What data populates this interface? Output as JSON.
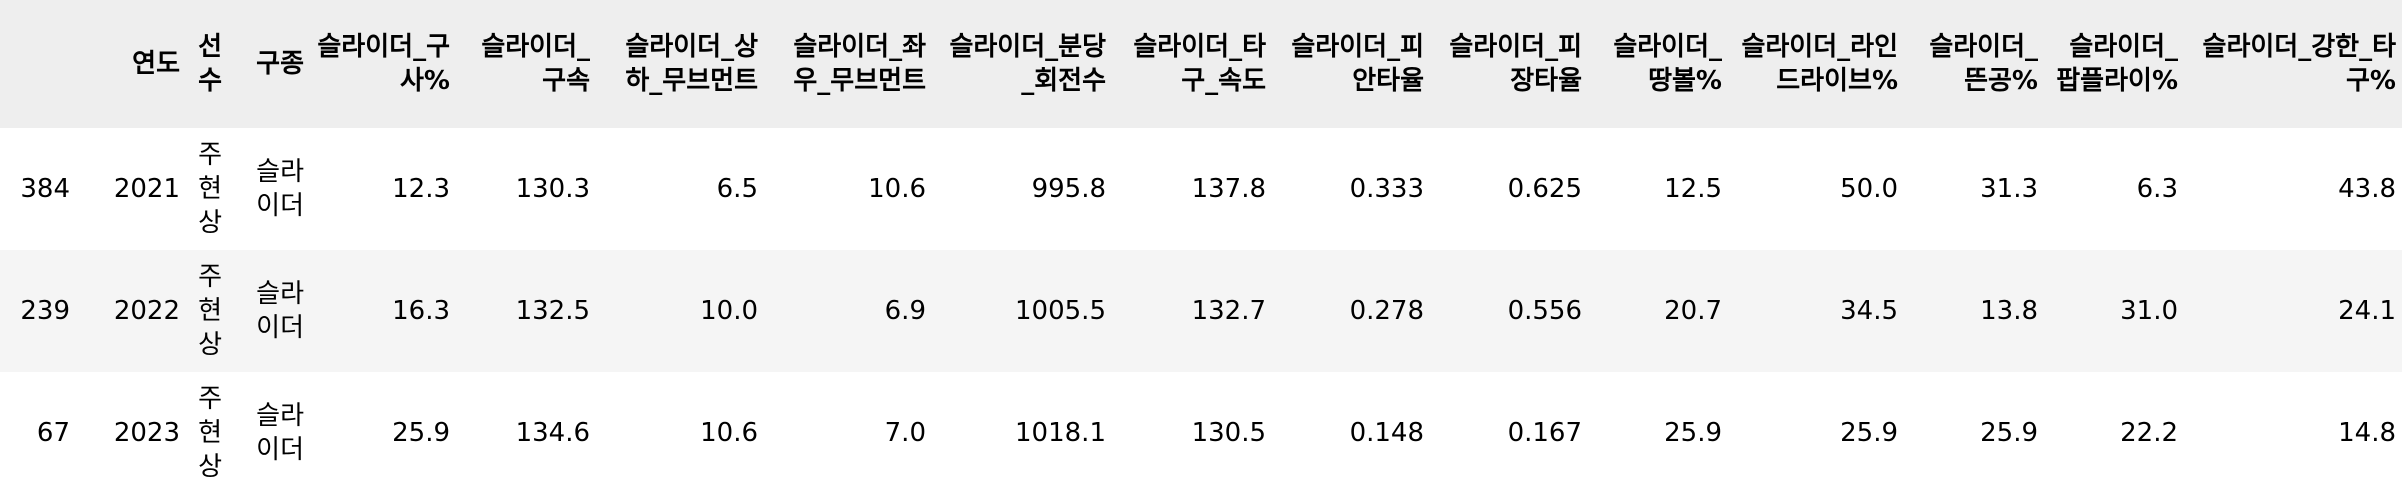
{
  "table": {
    "columns": [
      "",
      "연도",
      "선수",
      "구종",
      "슬라이더_구사%",
      "슬라이더_구속",
      "슬라이더_상하_무브먼트",
      "슬라이더_좌우_무브먼트",
      "슬라이더_분당_회전수",
      "슬라이더_타구_속도",
      "슬라이더_피안타율",
      "슬라이더_피장타율",
      "슬라이더_땅볼%",
      "슬라이더_라인드라이브%",
      "슬라이더_뜬공%",
      "슬라이더_팝플라이%",
      "슬라이더_강한_타구%"
    ],
    "rows": [
      [
        "384",
        "2021",
        "주현상",
        "슬라이더",
        "12.3",
        "130.3",
        "6.5",
        "10.6",
        "995.8",
        "137.8",
        "0.333",
        "0.625",
        "12.5",
        "50.0",
        "31.3",
        "6.3",
        "43.8"
      ],
      [
        "239",
        "2022",
        "주현상",
        "슬라이더",
        "16.3",
        "132.5",
        "10.0",
        "6.9",
        "1005.5",
        "132.7",
        "0.278",
        "0.556",
        "20.7",
        "34.5",
        "13.8",
        "31.0",
        "24.1"
      ],
      [
        "67",
        "2023",
        "주현상",
        "슬라이더",
        "25.9",
        "134.6",
        "10.6",
        "7.0",
        "1018.1",
        "130.5",
        "0.148",
        "0.167",
        "25.9",
        "25.9",
        "25.9",
        "22.2",
        "14.8"
      ]
    ]
  }
}
